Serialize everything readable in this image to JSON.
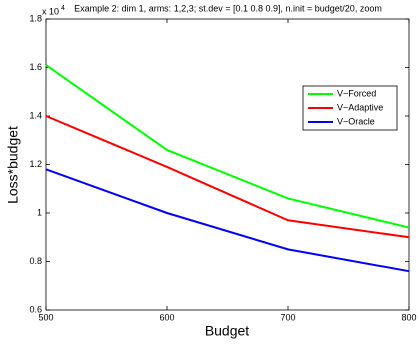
{
  "chart_data": {
    "type": "line",
    "title": "Example 2: dim 1, arms: 1,2,3; st.dev = [0.1 0.8 0.9], n.init = budget/20, zoom",
    "xlabel": "Budget",
    "ylabel": "Loss*budget",
    "y_multiplier": {
      "base": "x 10",
      "exponent": "4"
    },
    "x": [
      500,
      600,
      700,
      800
    ],
    "series": [
      {
        "name": "V−Forced",
        "color": "#00ff00",
        "values": [
          1.61,
          1.26,
          1.06,
          0.94
        ]
      },
      {
        "name": "V−Adaptive",
        "color": "#ff0000",
        "values": [
          1.4,
          1.19,
          0.97,
          0.9
        ]
      },
      {
        "name": "V−Oracle",
        "color": "#0000ff",
        "values": [
          1.18,
          1.0,
          0.85,
          0.76
        ]
      }
    ],
    "xlim": [
      500,
      800
    ],
    "xticks": [
      500,
      600,
      700,
      800
    ],
    "ylim": [
      0.6,
      1.8
    ],
    "yticks": [
      0.6,
      0.8,
      1,
      1.2,
      1.4,
      1.6,
      1.8
    ],
    "grid": false,
    "legend": "northeast"
  }
}
